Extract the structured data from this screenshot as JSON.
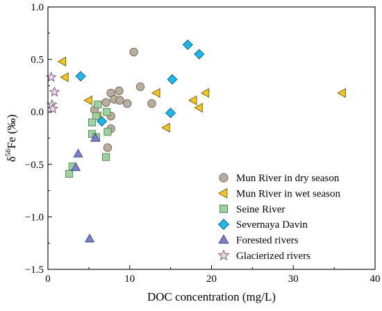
{
  "chart_data": {
    "type": "scatter",
    "title": "",
    "xlabel": "DOC concentration (mg/L)",
    "ylabel_parts": {
      "delta": "δ",
      "sup": "56",
      "rest": "Fe (‰)"
    },
    "xlim": [
      0,
      40
    ],
    "ylim": [
      -1.5,
      1.0
    ],
    "x_ticks": [
      0,
      10,
      20,
      30,
      40
    ],
    "x_tick_labels": [
      "0",
      "10",
      "20",
      "30",
      "40"
    ],
    "y_ticks": [
      -1.5,
      -1.0,
      -0.5,
      0.0,
      0.5,
      1.0
    ],
    "y_tick_labels": [
      "−1.5",
      "−1.0",
      "−0.5",
      "0.0",
      "0.5",
      "1.0"
    ],
    "grid": false,
    "legend_position": "bottom-right",
    "series": [
      {
        "name": "Mun River in dry season",
        "marker": "circle",
        "fill": "#b9ad9b",
        "stroke": "#6e6456",
        "points": [
          [
            10.5,
            0.57
          ],
          [
            11.3,
            0.24
          ],
          [
            8.7,
            0.2
          ],
          [
            7.7,
            0.18
          ],
          [
            8.1,
            0.12
          ],
          [
            8.8,
            0.11
          ],
          [
            9.7,
            0.08
          ],
          [
            7.1,
            0.09
          ],
          [
            12.7,
            0.08
          ],
          [
            7.7,
            -0.04
          ],
          [
            5.7,
            0.02
          ],
          [
            7.7,
            -0.16
          ],
          [
            7.3,
            -0.34
          ]
        ]
      },
      {
        "name": "Mun River in wet season",
        "marker": "triangle-left",
        "fill": "#f2c61f",
        "stroke": "#6e5a10",
        "points": [
          [
            1.8,
            0.48
          ],
          [
            2.1,
            0.33
          ],
          [
            5.0,
            0.11
          ],
          [
            6.1,
            -0.04
          ],
          [
            13.3,
            0.18
          ],
          [
            14.5,
            -0.15
          ],
          [
            17.8,
            0.11
          ],
          [
            18.5,
            0.04
          ],
          [
            19.3,
            0.18
          ],
          [
            36.0,
            0.18
          ]
        ]
      },
      {
        "name": "Seine River",
        "marker": "square",
        "fill": "#9fd1a0",
        "stroke": "#4f7f52",
        "points": [
          [
            6.1,
            0.07
          ],
          [
            7.2,
            0.0
          ],
          [
            5.9,
            -0.04
          ],
          [
            5.4,
            -0.1
          ],
          [
            7.3,
            -0.19
          ],
          [
            5.4,
            -0.21
          ],
          [
            5.9,
            -0.24
          ],
          [
            7.1,
            -0.43
          ],
          [
            3.0,
            -0.52
          ],
          [
            2.6,
            -0.59
          ]
        ]
      },
      {
        "name": "Severnaya Davin",
        "marker": "diamond",
        "fill": "#1fb6ea",
        "stroke": "#0d5f7e",
        "points": [
          [
            17.1,
            0.64
          ],
          [
            18.5,
            0.55
          ],
          [
            4.0,
            0.34
          ],
          [
            15.2,
            0.31
          ],
          [
            15.0,
            -0.01
          ],
          [
            6.6,
            -0.09
          ]
        ]
      },
      {
        "name": "Forested rivers",
        "marker": "triangle-up",
        "fill": "#7b7fd1",
        "stroke": "#3c3f7d",
        "points": [
          [
            5.8,
            -0.25
          ],
          [
            3.7,
            -0.4
          ],
          [
            3.4,
            -0.53
          ],
          [
            5.1,
            -1.21
          ]
        ]
      },
      {
        "name": "Glacierized rivers",
        "marker": "star",
        "fill": "#f3d9ef",
        "stroke": "#6e4f6a",
        "points": [
          [
            0.4,
            0.33
          ],
          [
            0.8,
            0.19
          ],
          [
            0.5,
            0.07
          ],
          [
            0.6,
            0.03
          ]
        ]
      }
    ]
  }
}
